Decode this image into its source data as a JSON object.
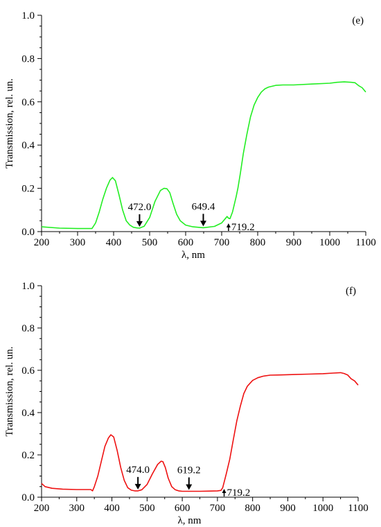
{
  "chart_data": [
    {
      "type": "line",
      "panel_label": "(e)",
      "xlabel": "λ, nm",
      "ylabel": "Transmission, rel. un.",
      "xlim": [
        200,
        1100
      ],
      "ylim": [
        0,
        1.0
      ],
      "xticks": [
        "200",
        "300",
        "400",
        "500",
        "600",
        "700",
        "800",
        "900",
        "1000",
        "1100"
      ],
      "yticks": [
        "0.0",
        "0.2",
        "0.4",
        "0.6",
        "0.8",
        "1.0"
      ],
      "grid": false,
      "legend": "none",
      "color": "#22ee22",
      "series": [
        {
          "x": [
            200,
            250,
            300,
            340,
            350,
            360,
            370,
            380,
            390,
            397,
            405,
            415,
            425,
            435,
            445,
            455,
            465,
            472,
            485,
            500,
            515,
            530,
            540,
            548,
            556,
            565,
            575,
            585,
            600,
            620,
            649,
            680,
            700,
            710,
            715,
            719,
            723,
            730,
            740,
            745,
            752,
            760,
            770,
            780,
            790,
            800,
            810,
            820,
            830,
            850,
            870,
            900,
            950,
            1000,
            1020,
            1040,
            1060,
            1070,
            1080,
            1090,
            1100
          ],
          "y": [
            0.022,
            0.016,
            0.014,
            0.014,
            0.04,
            0.09,
            0.15,
            0.2,
            0.238,
            0.25,
            0.235,
            0.17,
            0.1,
            0.05,
            0.03,
            0.02,
            0.017,
            0.016,
            0.025,
            0.065,
            0.14,
            0.19,
            0.2,
            0.198,
            0.18,
            0.13,
            0.08,
            0.05,
            0.03,
            0.022,
            0.018,
            0.024,
            0.04,
            0.06,
            0.07,
            0.062,
            0.06,
            0.09,
            0.16,
            0.2,
            0.27,
            0.36,
            0.45,
            0.53,
            0.585,
            0.62,
            0.645,
            0.66,
            0.668,
            0.676,
            0.678,
            0.678,
            0.682,
            0.686,
            0.69,
            0.692,
            0.69,
            0.688,
            0.675,
            0.665,
            0.645
          ]
        }
      ],
      "annotations": [
        {
          "text": "472.0",
          "x": 472,
          "y": 0.016,
          "arrow": "down"
        },
        {
          "text": "649.4",
          "x": 649,
          "y": 0.018,
          "arrow": "down"
        },
        {
          "text": "719.2",
          "x": 719,
          "y": 0.0,
          "arrow": "up"
        }
      ]
    },
    {
      "type": "line",
      "panel_label": "(f)",
      "xlabel": "λ, nm",
      "ylabel": "Transmission, rel. un.",
      "xlim": [
        200,
        1100
      ],
      "ylim": [
        0,
        1.0
      ],
      "xticks": [
        "200",
        "300",
        "400",
        "500",
        "600",
        "700",
        "800",
        "900",
        "1000",
        "1100"
      ],
      "yticks": [
        "0.0",
        "0.2",
        "0.4",
        "0.6",
        "0.8",
        "1.0"
      ],
      "grid": false,
      "legend": "none",
      "color": "#ee1111",
      "series": [
        {
          "x": [
            200,
            210,
            230,
            260,
            300,
            340,
            345,
            350,
            360,
            370,
            380,
            390,
            397,
            405,
            415,
            425,
            435,
            445,
            455,
            465,
            474,
            485,
            500,
            515,
            530,
            540,
            545,
            552,
            560,
            570,
            580,
            590,
            600,
            619,
            650,
            680,
            700,
            710,
            715,
            719,
            725,
            735,
            745,
            755,
            765,
            775,
            785,
            800,
            815,
            830,
            850,
            880,
            920,
            960,
            1000,
            1030,
            1050,
            1060,
            1070,
            1080,
            1090,
            1100
          ],
          "y": [
            0.065,
            0.05,
            0.042,
            0.038,
            0.036,
            0.036,
            0.03,
            0.05,
            0.1,
            0.17,
            0.24,
            0.28,
            0.295,
            0.285,
            0.22,
            0.14,
            0.08,
            0.045,
            0.033,
            0.03,
            0.03,
            0.035,
            0.06,
            0.11,
            0.155,
            0.17,
            0.168,
            0.14,
            0.09,
            0.05,
            0.035,
            0.03,
            0.028,
            0.028,
            0.028,
            0.029,
            0.03,
            0.032,
            0.045,
            0.07,
            0.11,
            0.18,
            0.27,
            0.36,
            0.43,
            0.49,
            0.525,
            0.552,
            0.565,
            0.572,
            0.577,
            0.578,
            0.58,
            0.582,
            0.584,
            0.587,
            0.589,
            0.585,
            0.578,
            0.56,
            0.55,
            0.53
          ]
        }
      ],
      "annotations": [
        {
          "text": "474.0",
          "x": 474,
          "y": 0.03,
          "arrow": "down"
        },
        {
          "text": "619.2",
          "x": 619,
          "y": 0.028,
          "arrow": "down"
        },
        {
          "text": "719.2",
          "x": 719,
          "y": 0.0,
          "arrow": "up"
        }
      ]
    }
  ]
}
